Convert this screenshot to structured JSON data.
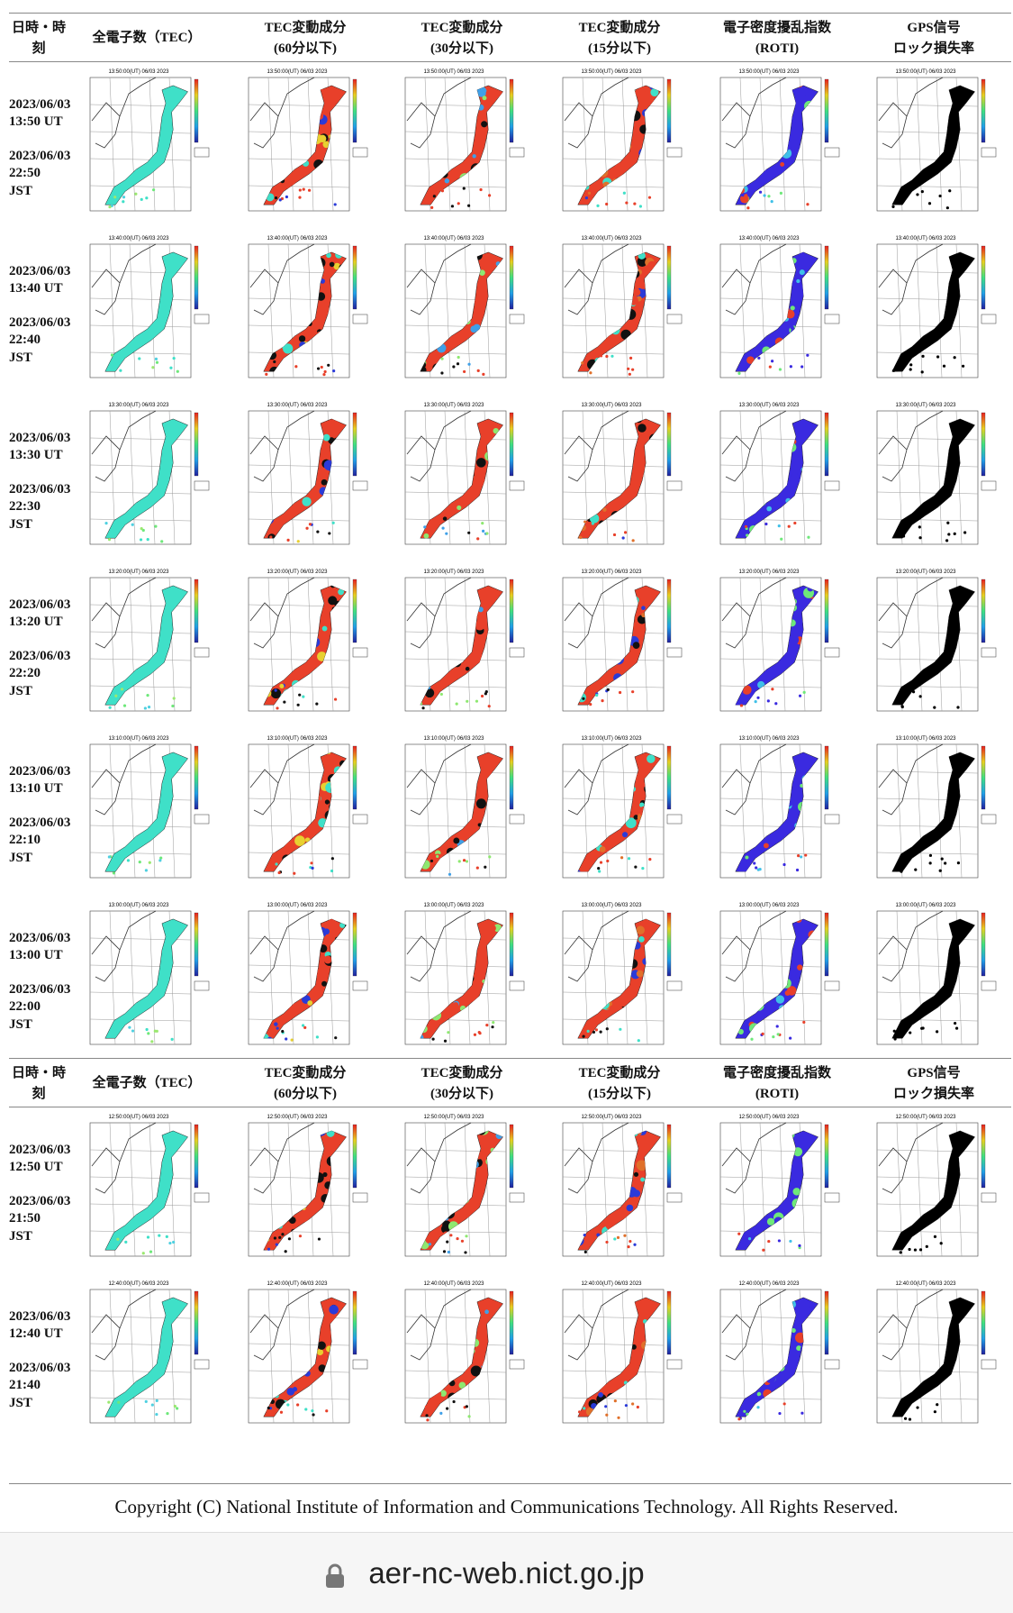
{
  "header": [
    [
      "日時・時",
      "刻"
    ],
    [
      "全電子数（TEC）"
    ],
    [
      "TEC変動成分",
      "(60分以下)"
    ],
    [
      "TEC変動成分",
      "(30分以下)"
    ],
    [
      "TEC変動成分",
      "(15分以下)"
    ],
    [
      "電子密度擾乱指数",
      "(ROTI)"
    ],
    [
      "GPS信号",
      "ロック損失率"
    ]
  ],
  "groups": [
    {
      "rows": [
        {
          "ut_date": "2023/06/03",
          "ut_time": "13:50 UT",
          "jst_date": "2023/06/03",
          "jst_time": "22:50",
          "jst": "JST",
          "caption": "13:50:00(UT) 06/03 2023"
        },
        {
          "ut_date": "2023/06/03",
          "ut_time": "13:40 UT",
          "jst_date": "2023/06/03",
          "jst_time": "22:40",
          "jst": "JST",
          "caption": "13:40:00(UT) 06/03 2023"
        },
        {
          "ut_date": "2023/06/03",
          "ut_time": "13:30 UT",
          "jst_date": "2023/06/03",
          "jst_time": "22:30",
          "jst": "JST",
          "caption": "13:30:00(UT) 06/03 2023"
        },
        {
          "ut_date": "2023/06/03",
          "ut_time": "13:20 UT",
          "jst_date": "2023/06/03",
          "jst_time": "22:20",
          "jst": "JST",
          "caption": "13:20:00(UT) 06/03 2023"
        },
        {
          "ut_date": "2023/06/03",
          "ut_time": "13:10 UT",
          "jst_date": "2023/06/03",
          "jst_time": "22:10",
          "jst": "JST",
          "caption": "13:10:00(UT) 06/03 2023"
        },
        {
          "ut_date": "2023/06/03",
          "ut_time": "13:00 UT",
          "jst_date": "2023/06/03",
          "jst_time": "22:00",
          "jst": "JST",
          "caption": "13:00:00(UT) 06/03 2023"
        }
      ]
    },
    {
      "rows": [
        {
          "ut_date": "2023/06/03",
          "ut_time": "12:50 UT",
          "jst_date": "2023/06/03",
          "jst_time": "21:50",
          "jst": "JST",
          "caption": "12:50:00(UT) 06/03 2023"
        },
        {
          "ut_date": "2023/06/03",
          "ut_time": "12:40 UT",
          "jst_date": "2023/06/03",
          "jst_time": "21:40",
          "jst": "JST",
          "caption": "12:40:00(UT) 06/03 2023"
        }
      ]
    }
  ],
  "copyright": "Copyright (C) National Institute of Information and Communications Technology. All Rights Reserved.",
  "url": "aer-nc-web.nict.go.jp"
}
